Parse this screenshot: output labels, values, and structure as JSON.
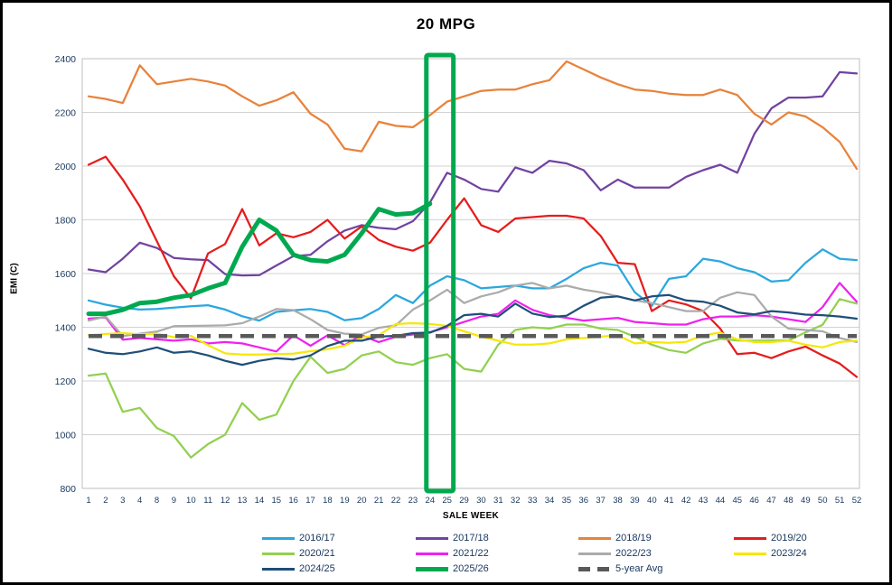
{
  "chart_data": {
    "type": "line",
    "title": "20 MPG",
    "xlabel": "SALE WEEK",
    "ylabel": "EMI (C)",
    "ylim": [
      800,
      2400
    ],
    "ytick_step": 200,
    "grid": true,
    "legend_position": "bottom",
    "categories": [
      "1",
      "2",
      "3",
      "4",
      "8",
      "9",
      "10",
      "11",
      "12",
      "13",
      "14",
      "15",
      "16",
      "17",
      "18",
      "19",
      "20",
      "21",
      "22",
      "23",
      "24",
      "25",
      "29",
      "30",
      "31",
      "32",
      "33",
      "34",
      "35",
      "36",
      "37",
      "38",
      "39",
      "40",
      "41",
      "42",
      "43",
      "44",
      "45",
      "46",
      "47",
      "48",
      "49",
      "50",
      "51",
      "52"
    ],
    "annotation_box": {
      "from_category": "24",
      "to_category": "25",
      "color": "#00A94F"
    },
    "colors": {
      "grid": "#D2D2D2",
      "plot_border": "#BFBFBF",
      "tick_text": "#17365D",
      "highlight": "#00A94F"
    },
    "series": [
      {
        "name": "2016/17",
        "color": "#2BA7DE",
        "width": 2.25,
        "values": [
          1500,
          1484,
          1473,
          1466,
          1468,
          1473,
          1478,
          1482,
          1466,
          1441,
          1425,
          1457,
          1463,
          1468,
          1457,
          1426,
          1434,
          1468,
          1520,
          1490,
          1555,
          1590,
          1575,
          1545,
          1550,
          1555,
          1545,
          1545,
          1580,
          1620,
          1640,
          1630,
          1530,
          1480,
          1580,
          1590,
          1655,
          1645,
          1620,
          1605,
          1570,
          1575,
          1640,
          1690,
          1655,
          1650
        ]
      },
      {
        "name": "2017/18",
        "color": "#7143A0",
        "width": 2.25,
        "values": [
          1615,
          1605,
          1655,
          1715,
          1695,
          1658,
          1653,
          1650,
          1598,
          1593,
          1594,
          1630,
          1665,
          1670,
          1720,
          1760,
          1780,
          1770,
          1765,
          1795,
          1865,
          1975,
          1950,
          1915,
          1905,
          1995,
          1975,
          2020,
          2010,
          1985,
          1910,
          1950,
          1920,
          1920,
          1920,
          1960,
          1985,
          2005,
          1975,
          2120,
          2215,
          2255,
          2255,
          2260,
          2350,
          2345
        ]
      },
      {
        "name": "2018/19",
        "color": "#E8823A",
        "width": 2.25,
        "values": [
          2260,
          2250,
          2235,
          2375,
          2305,
          2315,
          2325,
          2315,
          2300,
          2260,
          2225,
          2245,
          2275,
          2195,
          2155,
          2065,
          2055,
          2165,
          2150,
          2145,
          2190,
          2240,
          2260,
          2280,
          2285,
          2285,
          2305,
          2320,
          2390,
          2360,
          2330,
          2305,
          2285,
          2280,
          2270,
          2265,
          2265,
          2285,
          2265,
          2195,
          2155,
          2200,
          2185,
          2145,
          2090,
          1990
        ]
      },
      {
        "name": "2019/20",
        "color": "#E51C1C",
        "width": 2.25,
        "values": [
          2005,
          2035,
          1950,
          1850,
          1720,
          1590,
          1508,
          1675,
          1710,
          1840,
          1705,
          1750,
          1735,
          1755,
          1800,
          1730,
          1775,
          1725,
          1700,
          1685,
          1715,
          1800,
          1880,
          1780,
          1755,
          1805,
          1810,
          1815,
          1815,
          1805,
          1740,
          1640,
          1635,
          1460,
          1500,
          1485,
          1460,
          1395,
          1300,
          1305,
          1285,
          1310,
          1328,
          1295,
          1265,
          1215
        ]
      },
      {
        "name": "2020/21",
        "color": "#92D050",
        "width": 2.25,
        "values": [
          1220,
          1228,
          1085,
          1100,
          1025,
          995,
          915,
          965,
          1000,
          1118,
          1055,
          1075,
          1200,
          1290,
          1230,
          1245,
          1295,
          1310,
          1270,
          1260,
          1285,
          1300,
          1245,
          1235,
          1335,
          1390,
          1400,
          1395,
          1410,
          1410,
          1395,
          1390,
          1365,
          1335,
          1315,
          1305,
          1340,
          1357,
          1351,
          1350,
          1351,
          1351,
          1381,
          1409,
          1505,
          1488
        ]
      },
      {
        "name": "2021/22",
        "color": "#EE22EE",
        "width": 2.25,
        "values": [
          1432,
          1437,
          1354,
          1360,
          1355,
          1350,
          1355,
          1340,
          1345,
          1340,
          1325,
          1310,
          1370,
          1331,
          1370,
          1333,
          1370,
          1345,
          1365,
          1373,
          1382,
          1400,
          1420,
          1440,
          1450,
          1500,
          1465,
          1445,
          1435,
          1425,
          1430,
          1435,
          1420,
          1415,
          1410,
          1410,
          1430,
          1440,
          1440,
          1445,
          1440,
          1430,
          1420,
          1475,
          1565,
          1495
        ]
      },
      {
        "name": "2022/23",
        "color": "#ABABAB",
        "width": 2.25,
        "values": [
          1425,
          1440,
          1367,
          1376,
          1384,
          1404,
          1405,
          1406,
          1407,
          1415,
          1440,
          1468,
          1464,
          1430,
          1390,
          1376,
          1373,
          1398,
          1407,
          1466,
          1500,
          1540,
          1490,
          1515,
          1530,
          1555,
          1565,
          1545,
          1555,
          1540,
          1530,
          1515,
          1500,
          1490,
          1475,
          1460,
          1460,
          1510,
          1530,
          1520,
          1440,
          1395,
          1390,
          1385,
          1360,
          1345
        ]
      },
      {
        "name": "2023/24",
        "color": "#F5E70A",
        "width": 2.25,
        "values": [
          1370,
          1375,
          1378,
          1374,
          1376,
          1363,
          1368,
          1333,
          1303,
          1298,
          1298,
          1300,
          1302,
          1311,
          1318,
          1331,
          1362,
          1370,
          1412,
          1415,
          1412,
          1405,
          1385,
          1365,
          1350,
          1335,
          1335,
          1340,
          1355,
          1360,
          1365,
          1370,
          1340,
          1345,
          1342,
          1346,
          1370,
          1380,
          1355,
          1345,
          1345,
          1350,
          1335,
          1325,
          1345,
          1350
        ]
      },
      {
        "name": "2024/25",
        "color": "#1F4E79",
        "width": 2.25,
        "values": [
          1320,
          1305,
          1300,
          1310,
          1325,
          1305,
          1310,
          1295,
          1275,
          1260,
          1275,
          1285,
          1280,
          1295,
          1330,
          1350,
          1350,
          1365,
          1368,
          1378,
          1380,
          1405,
          1445,
          1450,
          1440,
          1488,
          1451,
          1438,
          1443,
          1480,
          1510,
          1515,
          1500,
          1515,
          1520,
          1500,
          1495,
          1480,
          1455,
          1448,
          1460,
          1455,
          1447,
          1445,
          1440,
          1432
        ]
      },
      {
        "name": "2025/26",
        "color": "#00A94F",
        "width": 5,
        "values": [
          1450,
          1450,
          1465,
          1490,
          1495,
          1510,
          1520,
          1545,
          1565,
          1700,
          1800,
          1760,
          1670,
          1650,
          1645,
          1670,
          1750,
          1840,
          1820,
          1825,
          1860,
          null,
          null,
          null,
          null,
          null,
          null,
          null,
          null,
          null,
          null,
          null,
          null,
          null,
          null,
          null,
          null,
          null,
          null,
          null,
          null,
          null,
          null,
          null,
          null,
          null
        ]
      },
      {
        "name": "5-year Avg",
        "color": "#595959",
        "width": 4.5,
        "dash": "15 9",
        "values": [
          1367,
          1367,
          1367,
          1367,
          1367,
          1367,
          1367,
          1367,
          1367,
          1367,
          1367,
          1367,
          1367,
          1367,
          1367,
          1367,
          1367,
          1367,
          1367,
          1367,
          1367,
          1367,
          1367,
          1367,
          1367,
          1367,
          1367,
          1367,
          1367,
          1367,
          1367,
          1367,
          1367,
          1367,
          1367,
          1367,
          1367,
          1367,
          1367,
          1367,
          1367,
          1367,
          1367,
          1367,
          1367,
          1367
        ]
      }
    ]
  }
}
